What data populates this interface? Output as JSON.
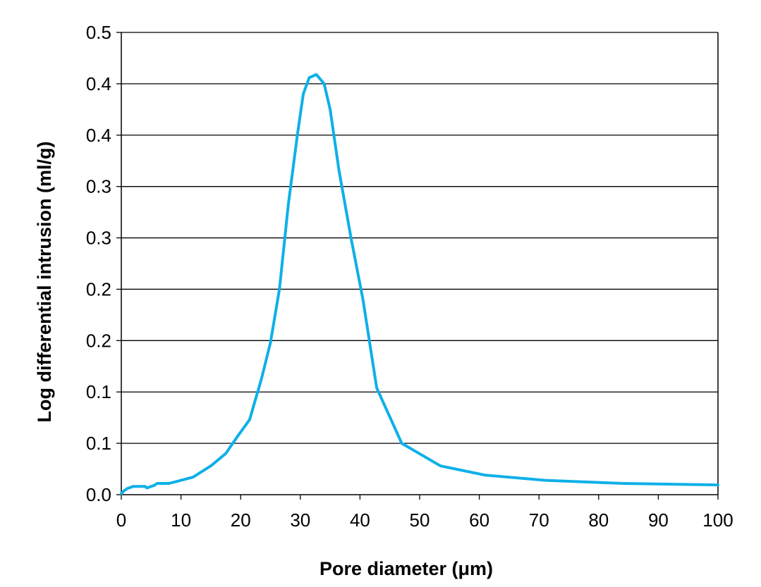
{
  "chart_data": {
    "type": "line",
    "title": "",
    "xlabel": "Pore diameter (μm)",
    "ylabel": "Log differential intrusion (ml/g)",
    "xlim": [
      0,
      100
    ],
    "ylim": [
      0,
      0.45
    ],
    "x_ticks": [
      0,
      10,
      20,
      30,
      40,
      50,
      60,
      70,
      80,
      90,
      100
    ],
    "x_tick_labels": [
      "0",
      "10",
      "20",
      "30",
      "40",
      "50",
      "60",
      "70",
      "80",
      "90",
      "100"
    ],
    "y_ticks": [
      0,
      0.05,
      0.1,
      0.15,
      0.2,
      0.25,
      0.3,
      0.35,
      0.4,
      0.45
    ],
    "y_tick_labels": [
      "0.0",
      "0.1",
      "0.1",
      "0.2",
      "0.2",
      "0.3",
      "0.3",
      "0.4",
      "0.4",
      "0.5"
    ],
    "grid": "horizontal",
    "legend": "none",
    "series": [
      {
        "color": "#0eb0e8",
        "x": [
          0,
          0.5,
          1,
          2,
          3,
          4,
          4.3,
          5,
          5.5,
          6,
          7,
          8,
          10,
          12,
          15,
          17.5,
          19.5,
          21.5,
          23.5,
          25,
          26.5,
          28,
          29.5,
          30.5,
          31.5,
          32.7,
          34,
          35,
          36.5,
          38.5,
          40.5,
          42.8,
          47,
          53.5,
          61,
          71,
          84,
          100
        ],
        "y": [
          0.001,
          0.004,
          0.006,
          0.008,
          0.008,
          0.008,
          0.0065,
          0.008,
          0.009,
          0.011,
          0.011,
          0.011,
          0.014,
          0.017,
          0.028,
          0.04,
          0.057,
          0.073,
          0.113,
          0.148,
          0.2,
          0.283,
          0.35,
          0.39,
          0.406,
          0.409,
          0.4,
          0.375,
          0.315,
          0.25,
          0.19,
          0.104,
          0.05,
          0.028,
          0.019,
          0.014,
          0.011,
          0.0095
        ]
      }
    ]
  }
}
